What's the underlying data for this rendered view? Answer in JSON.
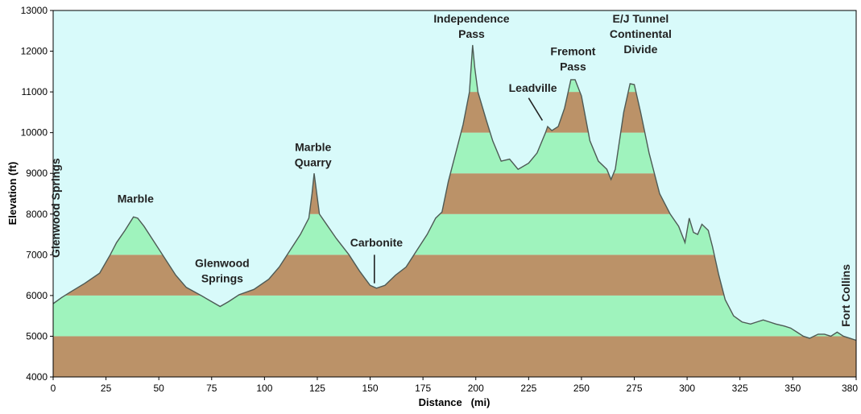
{
  "chart_data": {
    "type": "area",
    "xlabel": "Distance   (mi)",
    "ylabel": "Elevation (ft)",
    "xlim": [
      0,
      380
    ],
    "ylim": [
      4000,
      13000
    ],
    "x_ticks": [
      0,
      25,
      50,
      75,
      100,
      125,
      150,
      175,
      200,
      225,
      250,
      275,
      300,
      325,
      350,
      380
    ],
    "y_ticks": [
      4000,
      5000,
      6000,
      7000,
      8000,
      9000,
      10000,
      11000,
      12000,
      13000
    ],
    "band_colors": [
      "#bb9268",
      "#9ff3bd"
    ],
    "sky_color": "#d8fafa",
    "outline_color": "#4d5a55",
    "profile": [
      [
        0,
        5800
      ],
      [
        4,
        5950
      ],
      [
        8,
        6080
      ],
      [
        15,
        6300
      ],
      [
        22,
        6550
      ],
      [
        27,
        7000
      ],
      [
        30,
        7300
      ],
      [
        34,
        7600
      ],
      [
        38,
        7930
      ],
      [
        40,
        7900
      ],
      [
        43,
        7700
      ],
      [
        48,
        7300
      ],
      [
        53,
        6900
      ],
      [
        58,
        6500
      ],
      [
        63,
        6200
      ],
      [
        70,
        6000
      ],
      [
        75,
        5850
      ],
      [
        79,
        5730
      ],
      [
        83,
        5850
      ],
      [
        88,
        6020
      ],
      [
        95,
        6150
      ],
      [
        102,
        6400
      ],
      [
        107,
        6700
      ],
      [
        112,
        7100
      ],
      [
        117,
        7500
      ],
      [
        121,
        7900
      ],
      [
        122.5,
        8500
      ],
      [
        123.5,
        9000
      ],
      [
        124.5,
        8600
      ],
      [
        126,
        8000
      ],
      [
        130,
        7700
      ],
      [
        134,
        7400
      ],
      [
        140,
        7000
      ],
      [
        145,
        6600
      ],
      [
        150,
        6250
      ],
      [
        153,
        6180
      ],
      [
        157,
        6250
      ],
      [
        162,
        6500
      ],
      [
        167,
        6700
      ],
      [
        172,
        7100
      ],
      [
        177,
        7500
      ],
      [
        181,
        7900
      ],
      [
        184,
        8050
      ],
      [
        187,
        8800
      ],
      [
        191,
        9600
      ],
      [
        194,
        10200
      ],
      [
        197,
        11000
      ],
      [
        198.5,
        12150
      ],
      [
        199.5,
        11600
      ],
      [
        201,
        11000
      ],
      [
        205,
        10300
      ],
      [
        208,
        9800
      ],
      [
        212,
        9300
      ],
      [
        216,
        9350
      ],
      [
        220,
        9100
      ],
      [
        225,
        9250
      ],
      [
        229,
        9500
      ],
      [
        233,
        10000
      ],
      [
        234,
        10150
      ],
      [
        236,
        10050
      ],
      [
        239,
        10150
      ],
      [
        242,
        10600
      ],
      [
        245,
        11300
      ],
      [
        247,
        11300
      ],
      [
        250,
        10900
      ],
      [
        254,
        9800
      ],
      [
        258,
        9300
      ],
      [
        262,
        9100
      ],
      [
        264,
        8850
      ],
      [
        266,
        9100
      ],
      [
        270,
        10500
      ],
      [
        273,
        11200
      ],
      [
        275,
        11180
      ],
      [
        278,
        10500
      ],
      [
        282,
        9500
      ],
      [
        287,
        8500
      ],
      [
        292,
        8000
      ],
      [
        296,
        7700
      ],
      [
        299,
        7300
      ],
      [
        301,
        7900
      ],
      [
        303,
        7550
      ],
      [
        305,
        7500
      ],
      [
        307,
        7750
      ],
      [
        310,
        7600
      ],
      [
        312,
        7200
      ],
      [
        315,
        6500
      ],
      [
        318,
        5900
      ],
      [
        322,
        5500
      ],
      [
        326,
        5350
      ],
      [
        330,
        5300
      ],
      [
        333,
        5350
      ],
      [
        336,
        5400
      ],
      [
        339,
        5350
      ],
      [
        342,
        5300
      ],
      [
        346,
        5250
      ],
      [
        349,
        5200
      ],
      [
        352,
        5100
      ],
      [
        355,
        5000
      ],
      [
        358,
        4950
      ],
      [
        362,
        5050
      ],
      [
        365,
        5050
      ],
      [
        368,
        5000
      ],
      [
        371,
        5100
      ],
      [
        374,
        5000
      ],
      [
        377,
        4950
      ],
      [
        380,
        4900
      ]
    ],
    "annotations": [
      {
        "lines": [
          "Glenwood Springs"
        ],
        "x": 3,
        "y": 8150,
        "rotate": true
      },
      {
        "lines": [
          "Marble"
        ],
        "x": 39,
        "y": 8280
      },
      {
        "lines": [
          "Glenwood",
          "Springs"
        ],
        "x": 80,
        "y": 6700
      },
      {
        "lines": [
          "Marble",
          "Quarry"
        ],
        "x": 123,
        "y": 9550
      },
      {
        "lines": [
          "Carbonite"
        ],
        "x": 153,
        "y": 7200
      },
      {
        "lines": [
          "Independence",
          "Pass"
        ],
        "x": 198,
        "y": 12700
      },
      {
        "lines": [
          "Leadville"
        ],
        "x": 227,
        "y": 11000
      },
      {
        "lines": [
          "Fremont",
          "Pass"
        ],
        "x": 246,
        "y": 11900
      },
      {
        "lines": [
          "E/J Tunnel",
          "Continental",
          "Divide"
        ],
        "x": 278,
        "y": 12700
      },
      {
        "lines": [
          "Fort Collins"
        ],
        "x": 377,
        "y": 6000,
        "rotate": true
      }
    ],
    "pointers": [
      {
        "from": [
          152,
          6300
        ],
        "to": [
          152,
          7000
        ]
      },
      {
        "from": [
          225,
          10850
        ],
        "to": [
          231.5,
          10300
        ]
      }
    ]
  }
}
